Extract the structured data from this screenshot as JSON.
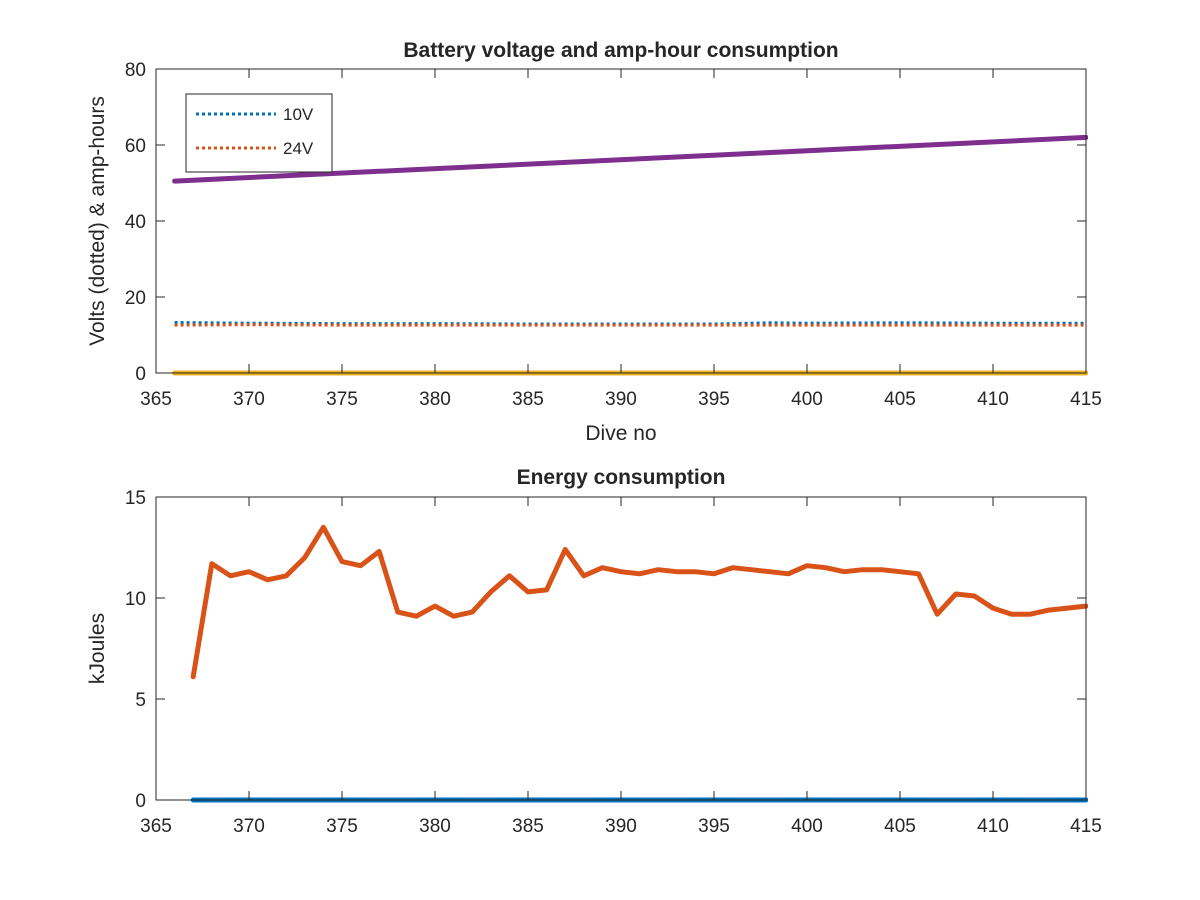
{
  "chart_data": [
    {
      "type": "line",
      "title": "Battery voltage and amp-hour consumption",
      "xlabel": "Dive no",
      "ylabel": "Volts (dotted) & amp-hours",
      "xlim": [
        365,
        415
      ],
      "ylim": [
        0,
        80
      ],
      "xticks": [
        365,
        370,
        375,
        380,
        385,
        390,
        395,
        400,
        405,
        410,
        415
      ],
      "yticks": [
        0,
        20,
        40,
        60,
        80
      ],
      "grid": false,
      "legend": {
        "placement": "top-left"
      },
      "series": [
        {
          "name": "10V",
          "style": "dotted",
          "color": "#0072BD",
          "x": [
            366,
            370,
            375,
            380,
            385,
            390,
            395,
            398,
            400,
            405,
            410,
            415
          ],
          "y": [
            13.3,
            13.1,
            13.0,
            13.0,
            12.9,
            12.9,
            12.9,
            13.2,
            13.1,
            13.2,
            13.1,
            13.1
          ]
        },
        {
          "name": "24V",
          "style": "dotted",
          "color": "#D95319",
          "x": [
            366,
            370,
            375,
            380,
            385,
            390,
            395,
            400,
            405,
            410,
            415
          ],
          "y": [
            12.6,
            12.7,
            12.6,
            12.6,
            12.6,
            12.6,
            12.6,
            12.6,
            12.6,
            12.6,
            12.6
          ]
        },
        {
          "style": "solid",
          "color": "#7E2F8E",
          "x": [
            366,
            415
          ],
          "y": [
            50.5,
            62.0
          ]
        },
        {
          "style": "solid",
          "color": "#EDB120",
          "x": [
            366,
            415
          ],
          "y": [
            0,
            0
          ]
        }
      ]
    },
    {
      "type": "line",
      "title": "Energy consumption",
      "xlabel": "",
      "ylabel": "kJoules",
      "xlim": [
        365,
        415
      ],
      "ylim": [
        0,
        15
      ],
      "xticks": [
        365,
        370,
        375,
        380,
        385,
        390,
        395,
        400,
        405,
        410,
        415
      ],
      "yticks": [
        0,
        5,
        10,
        15
      ],
      "grid": false,
      "series": [
        {
          "style": "solid",
          "color": "#D95319",
          "x": [
            367,
            368,
            369,
            370,
            371,
            372,
            373,
            374,
            375,
            376,
            377,
            378,
            379,
            380,
            381,
            382,
            383,
            384,
            385,
            386,
            387,
            388,
            389,
            390,
            391,
            392,
            393,
            394,
            395,
            396,
            397,
            398,
            399,
            400,
            401,
            402,
            403,
            404,
            405,
            406,
            407,
            408,
            409,
            410,
            411,
            412,
            413,
            414,
            415
          ],
          "y": [
            6.1,
            11.7,
            11.1,
            11.3,
            10.9,
            11.1,
            12.0,
            13.5,
            11.8,
            11.6,
            12.3,
            9.3,
            9.1,
            9.6,
            9.1,
            9.3,
            10.3,
            11.1,
            10.3,
            10.4,
            12.4,
            11.1,
            11.5,
            11.3,
            11.2,
            11.4,
            11.3,
            11.3,
            11.2,
            11.5,
            11.4,
            11.3,
            11.2,
            11.6,
            11.5,
            11.3,
            11.4,
            11.4,
            11.3,
            11.2,
            9.2,
            10.2,
            10.1,
            9.5,
            9.2,
            9.2,
            9.4,
            9.5,
            9.6
          ]
        },
        {
          "style": "solid",
          "color": "#0072BD",
          "x": [
            367,
            415
          ],
          "y": [
            0,
            0
          ]
        }
      ]
    }
  ]
}
